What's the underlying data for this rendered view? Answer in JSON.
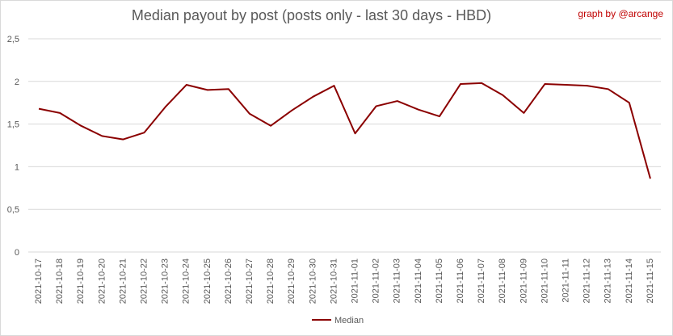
{
  "title": "Median payout by post (posts only - last 30 days - HBD)",
  "credit": "graph by @arcange",
  "colors": {
    "line": "#8b0000",
    "grid": "#d9d9d9",
    "text": "#595959",
    "credit": "#c00000"
  },
  "chart_data": {
    "type": "line",
    "title": "Median payout by post (posts only - last 30 days - HBD)",
    "categories": [
      "2021-10-17",
      "2021-10-18",
      "2021-10-19",
      "2021-10-20",
      "2021-10-21",
      "2021-10-22",
      "2021-10-23",
      "2021-10-24",
      "2021-10-25",
      "2021-10-26",
      "2021-10-27",
      "2021-10-28",
      "2021-10-29",
      "2021-10-30",
      "2021-10-31",
      "2021-11-01",
      "2021-11-02",
      "2021-11-03",
      "2021-11-04",
      "2021-11-05",
      "2021-11-06",
      "2021-11-07",
      "2021-11-08",
      "2021-11-09",
      "2021-11-10",
      "2021-11-11",
      "2021-11-12",
      "2021-11-13",
      "2021-11-14",
      "2021-11-15"
    ],
    "series": [
      {
        "name": "Median",
        "values": [
          1.68,
          1.63,
          1.48,
          1.36,
          1.32,
          1.4,
          1.7,
          1.96,
          1.9,
          1.91,
          1.62,
          1.48,
          1.66,
          1.82,
          1.95,
          1.39,
          1.71,
          1.77,
          1.67,
          1.59,
          1.97,
          1.98,
          1.84,
          1.63,
          1.97,
          1.96,
          1.95,
          1.91,
          1.75,
          0.86
        ]
      }
    ],
    "yticks": [
      "0",
      "0,5",
      "1",
      "1,5",
      "2",
      "2,5"
    ],
    "ylim": [
      0,
      2.5
    ],
    "grid": true,
    "legend": "bottom-center"
  }
}
